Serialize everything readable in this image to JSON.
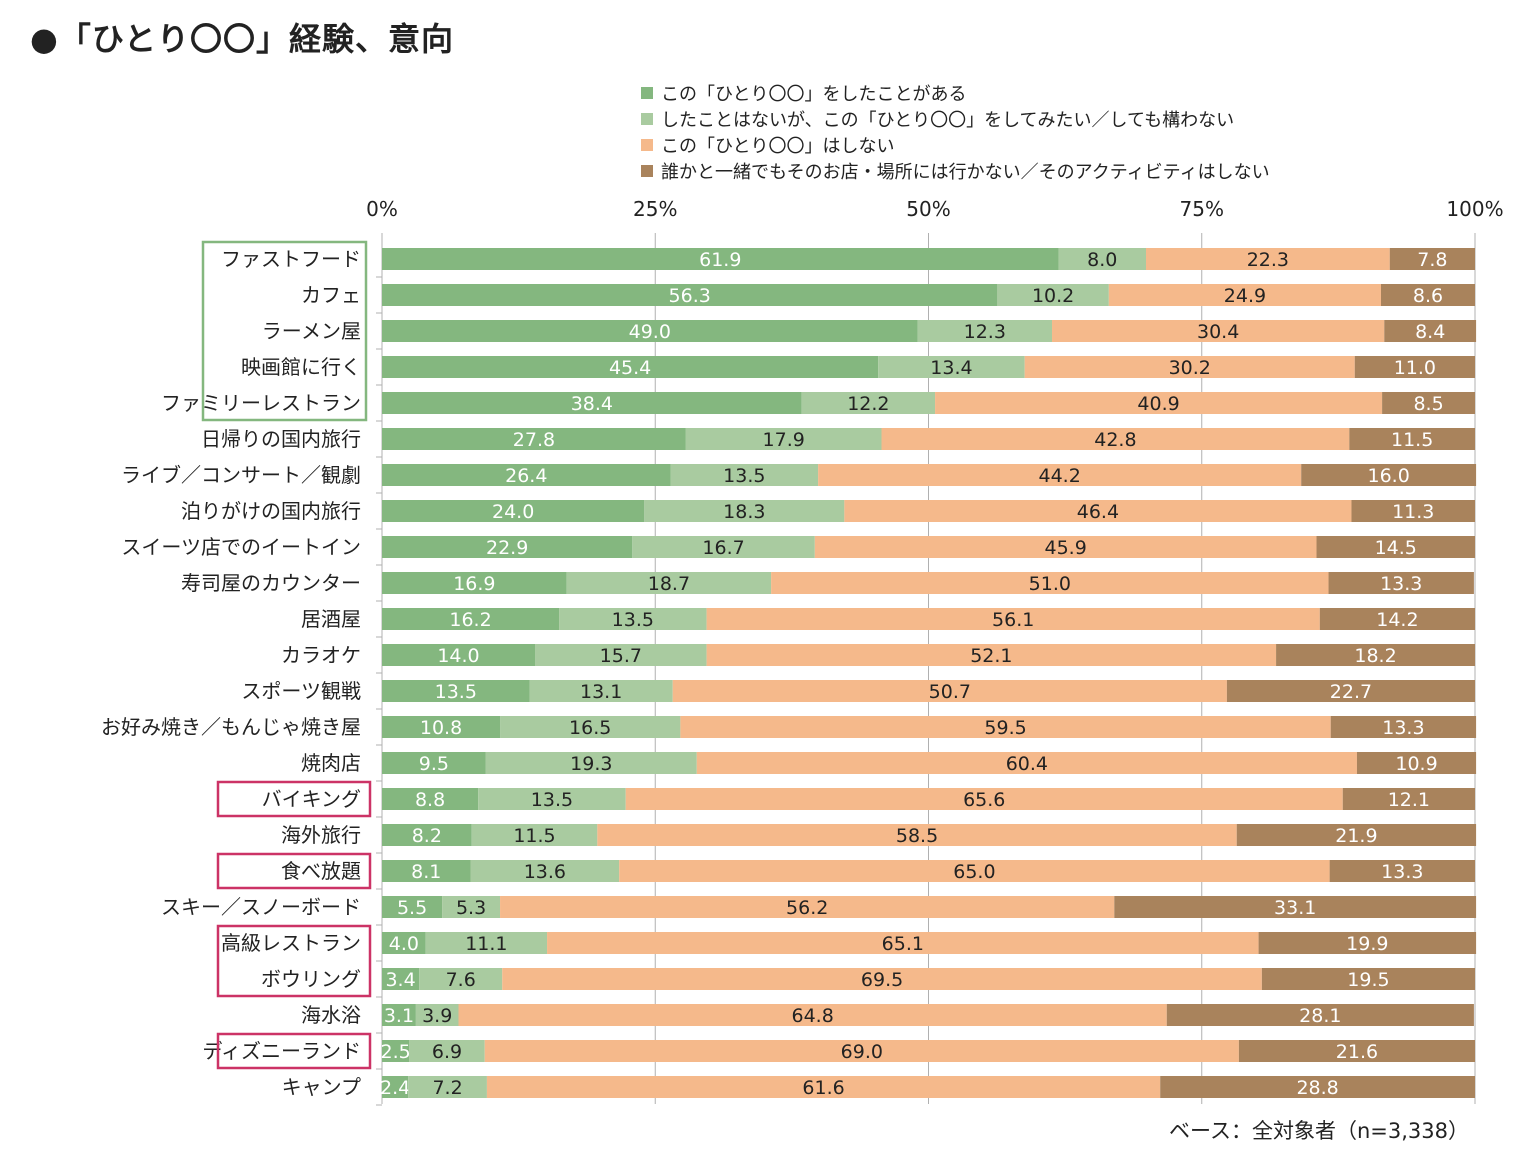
{
  "title": "●「ひとり〇〇」経験、意向",
  "base_note": "ベース：全対象者（n=3,338）",
  "colors": {
    "s1": "#84b77f",
    "s2": "#a9cba0",
    "s3": "#f5b98b",
    "s4": "#a9835c",
    "highlight_green": "#84b77f",
    "highlight_red": "#cc3366",
    "grid": "#b0b0b0"
  },
  "chart_data": {
    "type": "bar",
    "orientation": "horizontal",
    "stacked": "100%",
    "xlim": [
      0,
      100
    ],
    "ticks": [
      "0%",
      "25%",
      "50%",
      "75%",
      "100%"
    ],
    "tick_values": [
      0,
      25,
      50,
      75,
      100
    ],
    "categories": [
      "ファストフード",
      "カフェ",
      "ラーメン屋",
      "映画館に行く",
      "ファミリーレストラン",
      "日帰りの国内旅行",
      "ライブ／コンサート／観劇",
      "泊りがけの国内旅行",
      "スイーツ店でのイートイン",
      "寿司屋のカウンター",
      "居酒屋",
      "カラオケ",
      "スポーツ観戦",
      "お好み焼き／もんじゃ焼き屋",
      "焼肉店",
      "バイキング",
      "海外旅行",
      "食べ放題",
      "スキー／スノーボード",
      "高級レストラン",
      "ボウリング",
      "海水浴",
      "ディズニーランド",
      "キャンプ"
    ],
    "series": [
      {
        "name": "この「ひとり〇〇」をしたことがある",
        "values": [
          61.9,
          56.3,
          49.0,
          45.4,
          38.4,
          27.8,
          26.4,
          24.0,
          22.9,
          16.9,
          16.2,
          14.0,
          13.5,
          10.8,
          9.5,
          8.8,
          8.2,
          8.1,
          5.5,
          4.0,
          3.4,
          3.1,
          2.5,
          2.4
        ]
      },
      {
        "name": "したことはないが、この「ひとり〇〇」をしてみたい／しても構わない",
        "values": [
          8.0,
          10.2,
          12.3,
          13.4,
          12.2,
          17.9,
          13.5,
          18.3,
          16.7,
          18.7,
          13.5,
          15.7,
          13.1,
          16.5,
          19.3,
          13.5,
          11.5,
          13.6,
          5.3,
          11.1,
          7.6,
          3.9,
          6.9,
          7.2
        ]
      },
      {
        "name": "この「ひとり〇〇」はしない",
        "values": [
          22.3,
          24.9,
          30.4,
          30.2,
          40.9,
          42.8,
          44.2,
          46.4,
          45.9,
          51.0,
          56.1,
          52.1,
          50.7,
          59.5,
          60.4,
          65.6,
          58.5,
          65.0,
          56.2,
          65.1,
          69.5,
          64.8,
          69.0,
          61.6
        ]
      },
      {
        "name": "誰かと一緒でもそのお店・場所には行かない／そのアクティビティはしない",
        "values": [
          7.8,
          8.6,
          8.4,
          11.0,
          8.5,
          11.5,
          16.0,
          11.3,
          14.5,
          13.3,
          14.2,
          18.2,
          22.7,
          13.3,
          10.9,
          12.1,
          21.9,
          13.3,
          33.1,
          19.9,
          19.5,
          28.1,
          21.6,
          28.8
        ]
      }
    ],
    "legend_position": "top",
    "grid": true,
    "highlights": [
      {
        "color": "green",
        "categories": [
          "ファストフード",
          "カフェ",
          "ラーメン屋",
          "映画館に行く",
          "ファミリーレストラン"
        ]
      },
      {
        "color": "red",
        "categories": [
          "バイキング"
        ]
      },
      {
        "color": "red",
        "categories": [
          "食べ放題"
        ]
      },
      {
        "color": "red",
        "categories": [
          "高級レストラン",
          "ボウリング"
        ]
      },
      {
        "color": "red",
        "categories": [
          "ディズニーランド"
        ]
      }
    ]
  }
}
